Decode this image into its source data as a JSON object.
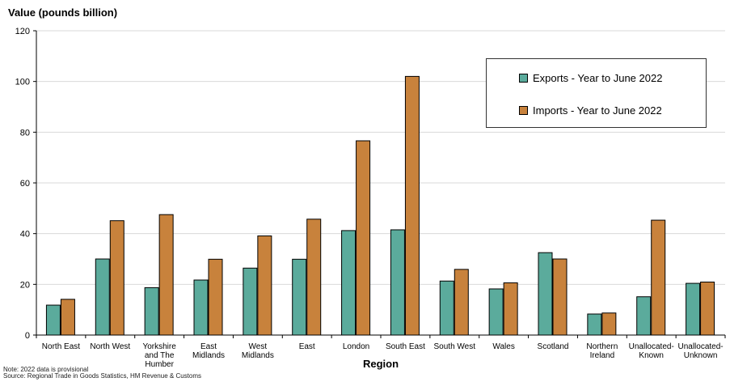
{
  "chart_data": {
    "type": "bar",
    "ylabel": "Value (pounds billion)",
    "xlabel": "Region",
    "ylim": [
      0,
      120
    ],
    "yticks": [
      0,
      20,
      40,
      60,
      80,
      100,
      120
    ],
    "grid": true,
    "legend_position": "top-right",
    "categories": [
      "North East",
      "North West",
      "Yorkshire and The Humber",
      "East Midlands",
      "West Midlands",
      "East",
      "London",
      "South East",
      "South West",
      "Wales",
      "Scotland",
      "Northern Ireland",
      "Unallocated-Known",
      "Unallocated-Unknown"
    ],
    "category_lines": [
      [
        "North East"
      ],
      [
        "North West"
      ],
      [
        "Yorkshire",
        "and The",
        "Humber"
      ],
      [
        "East",
        "Midlands"
      ],
      [
        "West",
        "Midlands"
      ],
      [
        "East"
      ],
      [
        "London"
      ],
      [
        "South East"
      ],
      [
        "South West"
      ],
      [
        "Wales"
      ],
      [
        "Scotland"
      ],
      [
        "Northern",
        "Ireland"
      ],
      [
        "Unallocated-",
        "Known"
      ],
      [
        "Unallocated-",
        "Unknown"
      ]
    ],
    "series": [
      {
        "name": "Exports - Year to June 2022",
        "color": "#5bab9c",
        "values": [
          11.8,
          30.0,
          18.7,
          21.7,
          26.4,
          29.9,
          41.2,
          41.5,
          21.3,
          18.2,
          32.5,
          8.3,
          15.1,
          20.4
        ]
      },
      {
        "name": "Imports - Year to June 2022",
        "color": "#c8823c",
        "values": [
          14.1,
          45.1,
          47.5,
          29.9,
          39.1,
          45.7,
          76.6,
          102.0,
          25.9,
          20.6,
          30.0,
          8.7,
          45.3,
          20.9
        ]
      }
    ]
  },
  "notes": {
    "note": "Note: 2022 data is provisional",
    "source": "Source: Regional Trade in Goods Statistics, HM Revenue & Customs"
  }
}
